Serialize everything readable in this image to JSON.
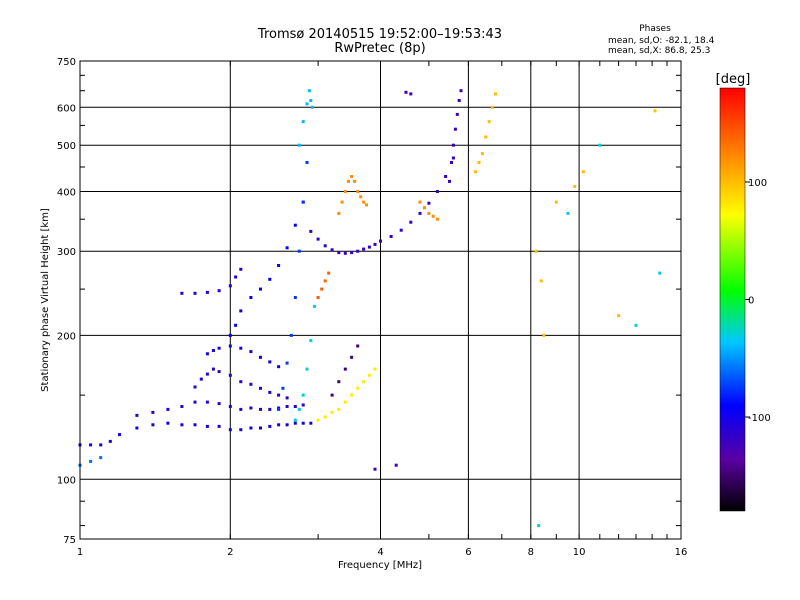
{
  "chart_data": {
    "type": "scatter",
    "title": "Tromsø 20140515 19:52:00–19:53:43",
    "subtitle": "RwPretec (8p)",
    "xlabel": "Frequency [MHz]",
    "ylabel": "Stationary phase Virtual Height [km]",
    "x_scale": "log",
    "y_scale": "log",
    "xlim": [
      1,
      16
    ],
    "ylim": [
      75,
      750
    ],
    "x_ticks": [
      "1",
      "2",
      "4",
      "6",
      "8",
      "10",
      "16"
    ],
    "x_tick_values": [
      1,
      2,
      4,
      6,
      8,
      10,
      16
    ],
    "y_ticks": [
      "75",
      "100",
      "200",
      "300",
      "400",
      "500",
      "600",
      "750"
    ],
    "y_tick_values": [
      75,
      100,
      200,
      300,
      400,
      500,
      600,
      750
    ],
    "grid": true,
    "stats": {
      "heading": "Phases",
      "line_o": "mean, sd,O: -82.1, 18.4",
      "line_x": "mean, sd,X: 86.8, 25.3"
    },
    "colorbar": {
      "label": "[deg]",
      "range": [
        -180,
        180
      ],
      "ticks": [
        "100",
        "0",
        "-100"
      ],
      "tick_values": [
        100,
        0,
        -100
      ]
    },
    "series": [
      {
        "x": [
          1.0,
          1.05,
          1.1,
          1.15,
          1.2,
          1.3,
          1.4,
          1.5,
          1.6,
          1.7,
          1.8,
          1.9,
          2.0,
          2.1,
          2.2,
          2.3,
          2.4,
          2.5,
          2.6,
          2.7,
          2.8,
          2.9
        ],
        "y": [
          118,
          118,
          118,
          120,
          124,
          128,
          130,
          131,
          130,
          130,
          129,
          129,
          127,
          127,
          128,
          128,
          129,
          130,
          130,
          131,
          131,
          131
        ],
        "phase": -100
      },
      {
        "x": [
          1.0,
          1.05,
          1.1
        ],
        "y": [
          107,
          109,
          111
        ],
        "phase": -60
      },
      {
        "x": [
          1.3,
          1.4,
          1.5,
          1.6,
          1.7,
          1.8,
          1.9,
          2.0,
          2.1,
          2.2,
          2.3,
          2.4,
          2.5,
          2.6,
          2.7,
          2.8
        ],
        "y": [
          136,
          138,
          140,
          142,
          145,
          145,
          144,
          142,
          140,
          141,
          140,
          140,
          141,
          142,
          142,
          143
        ],
        "phase": -110
      },
      {
        "x": [
          1.7,
          1.75,
          1.8,
          1.85,
          1.9,
          2.0,
          2.1,
          2.2,
          2.3,
          2.4,
          2.5,
          2.6
        ],
        "y": [
          156,
          162,
          166,
          170,
          168,
          165,
          160,
          158,
          155,
          152,
          150,
          148
        ],
        "phase": -110
      },
      {
        "x": [
          1.8,
          1.85,
          1.9,
          2.0,
          2.1,
          2.2,
          2.3,
          2.4,
          2.5
        ],
        "y": [
          183,
          186,
          188,
          190,
          188,
          185,
          180,
          176,
          172
        ],
        "phase": -100
      },
      {
        "x": [
          1.6,
          1.7,
          1.8,
          1.9,
          2.0,
          2.05,
          2.1
        ],
        "y": [
          245,
          245,
          246,
          248,
          254,
          265,
          275
        ],
        "phase": -105
      },
      {
        "x": [
          2.0,
          2.05,
          2.1,
          2.2,
          2.3,
          2.4,
          2.5,
          2.6,
          2.7,
          2.8
        ],
        "y": [
          200,
          210,
          225,
          240,
          250,
          262,
          280,
          305,
          340,
          380
        ],
        "phase": -90
      },
      {
        "x": [
          2.5,
          2.55,
          2.6,
          2.65,
          2.7,
          2.75,
          2.8,
          2.85
        ],
        "y": [
          140,
          155,
          175,
          200,
          240,
          300,
          380,
          460
        ],
        "phase": -75
      },
      {
        "x": [
          2.7,
          2.75,
          2.8,
          2.85,
          2.9,
          2.95
        ],
        "y": [
          133,
          140,
          150,
          170,
          195,
          230
        ],
        "phase": -30
      },
      {
        "x": [
          2.75,
          2.8,
          2.85,
          2.88,
          2.9,
          2.92
        ],
        "y": [
          500,
          560,
          610,
          650,
          620,
          600
        ],
        "phase": -40
      },
      {
        "x": [
          2.9,
          3.0,
          3.1,
          3.2,
          3.3,
          3.4,
          3.5,
          3.6,
          3.7,
          3.8,
          3.9,
          4.0,
          4.2,
          4.4,
          4.6,
          4.8,
          5.0,
          5.2,
          5.4,
          5.6
        ],
        "y": [
          330,
          318,
          308,
          302,
          298,
          297,
          298,
          300,
          303,
          306,
          310,
          315,
          322,
          332,
          345,
          360,
          378,
          400,
          430,
          470
        ],
        "phase": -115
      },
      {
        "x": [
          5.5,
          5.55,
          5.6,
          5.65,
          5.7,
          5.75,
          5.8
        ],
        "y": [
          420,
          460,
          500,
          540,
          580,
          620,
          650
        ],
        "phase": -120
      },
      {
        "x": [
          3.0,
          3.05,
          3.1,
          3.15
        ],
        "y": [
          240,
          250,
          260,
          270
        ],
        "phase": 140
      },
      {
        "x": [
          3.3,
          3.35,
          3.4,
          3.45,
          3.5,
          3.55,
          3.6,
          3.65,
          3.7,
          3.75
        ],
        "y": [
          360,
          380,
          400,
          420,
          430,
          420,
          400,
          390,
          380,
          375
        ],
        "phase": 120
      },
      {
        "x": [
          3.0,
          3.1,
          3.2,
          3.3,
          3.4,
          3.5,
          3.6,
          3.7,
          3.8,
          3.9
        ],
        "y": [
          133,
          135,
          138,
          140,
          145,
          150,
          155,
          160,
          165,
          170
        ],
        "phase": 80
      },
      {
        "x": [
          3.2,
          3.3,
          3.4,
          3.5,
          3.6
        ],
        "y": [
          150,
          160,
          170,
          180,
          190
        ],
        "phase": -150
      },
      {
        "x": [
          6.2,
          6.3,
          6.4,
          6.5,
          6.6,
          6.7,
          6.8
        ],
        "y": [
          440,
          460,
          480,
          520,
          560,
          600,
          640
        ],
        "phase": 100
      },
      {
        "x": [
          4.8,
          4.9,
          5.0,
          5.1,
          5.2
        ],
        "y": [
          380,
          370,
          360,
          355,
          350
        ],
        "phase": 120
      },
      {
        "x": [
          8.2,
          8.4,
          9.0,
          10.2,
          12.0,
          14.2,
          8.5,
          9.8
        ],
        "y": [
          300,
          260,
          380,
          440,
          220,
          590,
          200,
          410
        ],
        "phase": 100
      },
      {
        "x": [
          8.3,
          9.5,
          11.0,
          13.0,
          14.5
        ],
        "y": [
          80,
          360,
          500,
          210,
          270
        ],
        "phase": -30
      },
      {
        "x": [
          3.9,
          4.3,
          4.6,
          4.5
        ],
        "y": [
          105,
          107,
          640,
          645
        ],
        "phase": -120
      }
    ]
  }
}
